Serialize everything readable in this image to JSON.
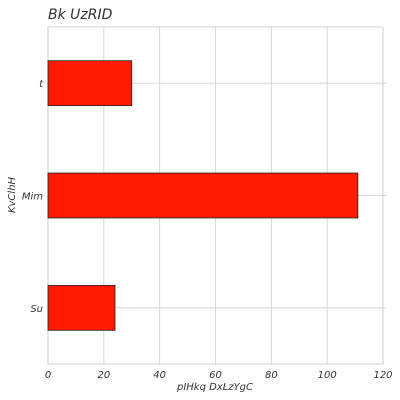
{
  "chart_data": {
    "type": "bar",
    "orientation": "horizontal",
    "title": "Bk UzRID",
    "xlabel": "pIHkq DxLzYgC",
    "ylabel": "KvClhH",
    "categories": [
      "Su",
      "Mim",
      "t"
    ],
    "values": [
      24,
      111,
      30
    ],
    "xlim": [
      0,
      120
    ],
    "xticks": [
      0,
      20,
      40,
      60,
      80,
      100,
      120
    ],
    "grid": true,
    "bar_color": "#ff1a00",
    "edge_color": "#222222"
  }
}
